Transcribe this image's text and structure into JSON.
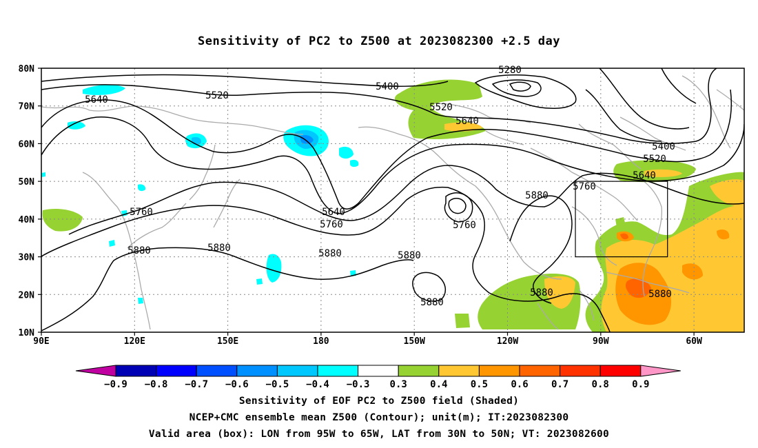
{
  "title": "Sensitivity of PC2 to Z500 at 2023082300 +2.5 day",
  "lat_labels": [
    "80N",
    "70N",
    "60N",
    "50N",
    "40N",
    "30N",
    "20N",
    "10N"
  ],
  "lon_labels": [
    "90E",
    "120E",
    "150E",
    "180",
    "150W",
    "120W",
    "90W",
    "60W"
  ],
  "contour_labels": [
    "5280",
    "5400",
    "5520",
    "5640",
    "5760",
    "5880"
  ],
  "colorbar": {
    "labels": [
      "-0.9",
      "-0.8",
      "-0.7",
      "-0.6",
      "-0.5",
      "-0.4",
      "-0.3",
      "0.3",
      "0.4",
      "0.5",
      "0.6",
      "0.7",
      "0.8",
      "0.9"
    ],
    "colors": [
      "#c000a0",
      "#0000b4",
      "#0000ff",
      "#0050ff",
      "#0090ff",
      "#00c8ff",
      "#00ffff",
      "#ffffff",
      "#96d232",
      "#ffc832",
      "#ff9600",
      "#ff6400",
      "#ff3200",
      "#ff0000",
      "#ff96c8"
    ]
  },
  "caption": {
    "line1": "Sensitivity of EOF PC2 to Z500 field (Shaded)",
    "line2": "NCEP+CMC ensemble mean Z500 (Contour); unit(m); IT:2023082300",
    "line3": "Valid area (box): LON from 95W to 65W, LAT from 30N to 50N; VT: 2023082600"
  }
}
